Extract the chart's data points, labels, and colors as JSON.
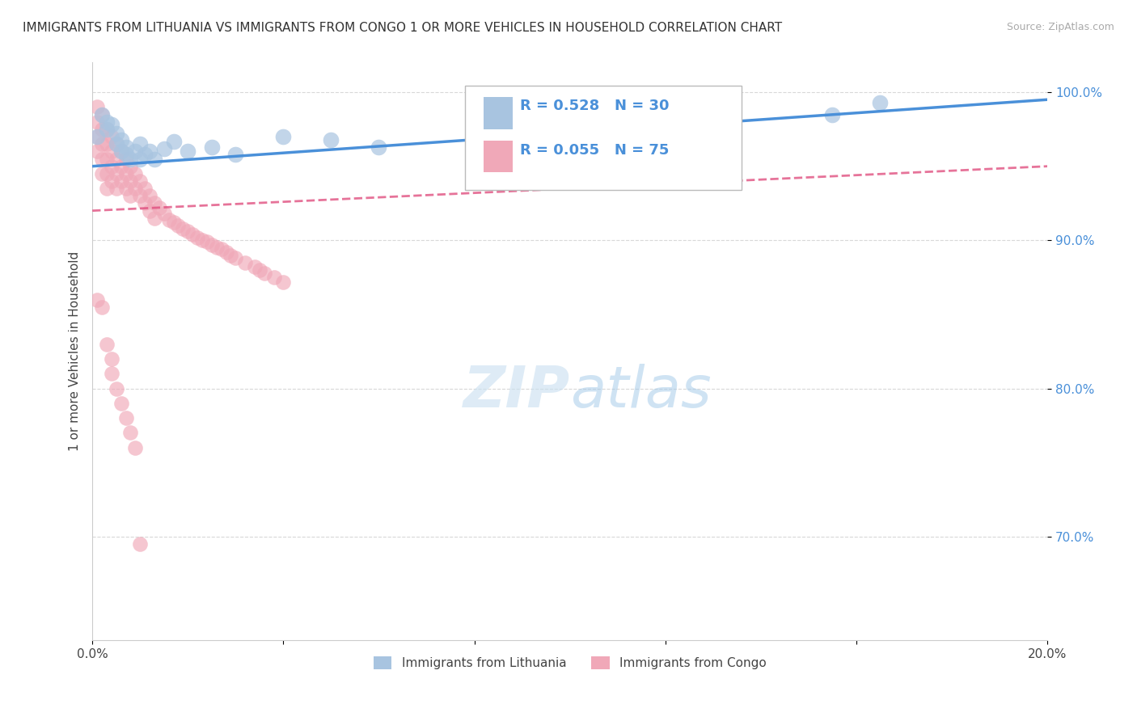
{
  "title": "IMMIGRANTS FROM LITHUANIA VS IMMIGRANTS FROM CONGO 1 OR MORE VEHICLES IN HOUSEHOLD CORRELATION CHART",
  "source": "Source: ZipAtlas.com",
  "ylabel": "1 or more Vehicles in Household",
  "xlabel": "",
  "legend_label1": "Immigrants from Lithuania",
  "legend_label2": "Immigrants from Congo",
  "R1": 0.528,
  "N1": 30,
  "R2": 0.055,
  "N2": 75,
  "xlim": [
    0.0,
    0.2
  ],
  "ylim": [
    0.63,
    1.02
  ],
  "xticks": [
    0.0,
    0.04,
    0.08,
    0.12,
    0.16,
    0.2
  ],
  "yticks": [
    0.7,
    0.8,
    0.9,
    1.0
  ],
  "ytick_labels": [
    "70.0%",
    "80.0%",
    "90.0%",
    "100.0%"
  ],
  "xtick_labels": [
    "0.0%",
    "",
    "",
    "",
    "",
    "20.0%"
  ],
  "color_lithuania": "#a8c4e0",
  "color_congo": "#f0a8b8",
  "color_line1": "#4a90d9",
  "color_line2": "#e05080",
  "background_color": "#ffffff",
  "grid_color": "#d8d8d8",
  "lithuania_x": [
    0.001,
    0.002,
    0.003,
    0.003,
    0.004,
    0.005,
    0.005,
    0.006,
    0.006,
    0.007,
    0.007,
    0.008,
    0.009,
    0.01,
    0.01,
    0.011,
    0.012,
    0.013,
    0.015,
    0.017,
    0.02,
    0.025,
    0.03,
    0.04,
    0.05,
    0.06,
    0.09,
    0.11,
    0.155,
    0.165
  ],
  "lithuania_y": [
    0.97,
    0.985,
    0.98,
    0.975,
    0.978,
    0.972,
    0.965,
    0.968,
    0.96,
    0.963,
    0.958,
    0.955,
    0.96,
    0.965,
    0.955,
    0.958,
    0.96,
    0.955,
    0.962,
    0.967,
    0.96,
    0.963,
    0.958,
    0.97,
    0.968,
    0.963,
    0.978,
    0.982,
    0.985,
    0.993
  ],
  "congo_x": [
    0.001,
    0.001,
    0.001,
    0.001,
    0.002,
    0.002,
    0.002,
    0.002,
    0.002,
    0.003,
    0.003,
    0.003,
    0.003,
    0.003,
    0.004,
    0.004,
    0.004,
    0.004,
    0.005,
    0.005,
    0.005,
    0.005,
    0.006,
    0.006,
    0.006,
    0.007,
    0.007,
    0.007,
    0.008,
    0.008,
    0.008,
    0.009,
    0.009,
    0.01,
    0.01,
    0.011,
    0.011,
    0.012,
    0.012,
    0.013,
    0.013,
    0.014,
    0.015,
    0.016,
    0.017,
    0.018,
    0.019,
    0.02,
    0.021,
    0.022,
    0.023,
    0.024,
    0.025,
    0.026,
    0.027,
    0.028,
    0.029,
    0.03,
    0.032,
    0.034,
    0.035,
    0.036,
    0.038,
    0.04,
    0.001,
    0.002,
    0.003,
    0.004,
    0.004,
    0.005,
    0.006,
    0.007,
    0.008,
    0.009,
    0.01
  ],
  "congo_y": [
    0.99,
    0.98,
    0.97,
    0.96,
    0.985,
    0.975,
    0.965,
    0.955,
    0.945,
    0.975,
    0.965,
    0.955,
    0.945,
    0.935,
    0.97,
    0.96,
    0.95,
    0.94,
    0.965,
    0.955,
    0.945,
    0.935,
    0.96,
    0.95,
    0.94,
    0.955,
    0.945,
    0.935,
    0.95,
    0.94,
    0.93,
    0.945,
    0.935,
    0.94,
    0.93,
    0.935,
    0.925,
    0.93,
    0.92,
    0.925,
    0.915,
    0.922,
    0.918,
    0.914,
    0.912,
    0.91,
    0.908,
    0.906,
    0.904,
    0.902,
    0.9,
    0.899,
    0.897,
    0.895,
    0.894,
    0.892,
    0.89,
    0.888,
    0.885,
    0.882,
    0.88,
    0.878,
    0.875,
    0.872,
    0.86,
    0.855,
    0.83,
    0.82,
    0.81,
    0.8,
    0.79,
    0.78,
    0.77,
    0.76,
    0.695
  ],
  "line1_x": [
    0.0,
    0.2
  ],
  "line1_y": [
    0.95,
    0.995
  ],
  "line2_x": [
    0.0,
    0.2
  ],
  "line2_y": [
    0.92,
    0.95
  ]
}
